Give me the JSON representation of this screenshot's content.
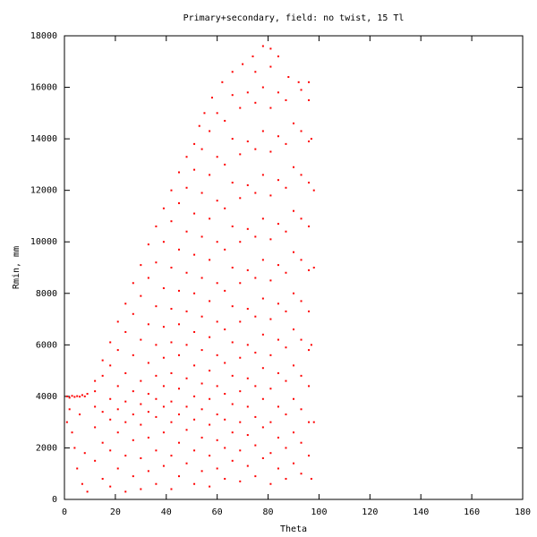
{
  "chart_data": {
    "type": "scatter",
    "title": "Primary+secondary, field: no twist, 15 Tl",
    "x_label": "Theta",
    "y_label": "Rmin, mm",
    "color": "#ff0000",
    "xlim": [
      0,
      180
    ],
    "ylim": [
      0,
      18000
    ],
    "xticks": [
      0,
      20,
      40,
      60,
      80,
      100,
      120,
      140,
      160,
      180
    ],
    "yticks": [
      0,
      2000,
      4000,
      6000,
      8000,
      10000,
      12000,
      14000,
      16000,
      18000
    ],
    "grid": false,
    "x": [
      1,
      2,
      3,
      4,
      5,
      6,
      7,
      8,
      9,
      2,
      3,
      5,
      7,
      9,
      1,
      4,
      6,
      8,
      12,
      15,
      18,
      21,
      24,
      27,
      30,
      33,
      36,
      39,
      42,
      45,
      48,
      51,
      53,
      55,
      58,
      62,
      66,
      70,
      74,
      78,
      81,
      84,
      88,
      92,
      96,
      97,
      98,
      98,
      97,
      98,
      97,
      12,
      12,
      12,
      12,
      15,
      15,
      15,
      15,
      18,
      18,
      18,
      18,
      18,
      21,
      21,
      21,
      21,
      21,
      24,
      24,
      24,
      24,
      24,
      24,
      27,
      27,
      27,
      27,
      27,
      27,
      30,
      30,
      30,
      30,
      30,
      30,
      30,
      33,
      33,
      33,
      33,
      33,
      33,
      33,
      36,
      36,
      36,
      36,
      36,
      36,
      36,
      36,
      39,
      39,
      39,
      39,
      39,
      39,
      39,
      39,
      42,
      42,
      42,
      42,
      42,
      42,
      42,
      42,
      42,
      45,
      45,
      45,
      45,
      45,
      45,
      45,
      45,
      45,
      48,
      48,
      48,
      48,
      48,
      48,
      48,
      48,
      48,
      51,
      51,
      51,
      51,
      51,
      51,
      51,
      51,
      51,
      51,
      54,
      54,
      54,
      54,
      54,
      54,
      54,
      54,
      54,
      54,
      57,
      57,
      57,
      57,
      57,
      57,
      57,
      57,
      57,
      57,
      57,
      60,
      60,
      60,
      60,
      60,
      60,
      60,
      60,
      60,
      60,
      60,
      63,
      63,
      63,
      63,
      63,
      63,
      63,
      63,
      63,
      63,
      63,
      66,
      66,
      66,
      66,
      66,
      66,
      66,
      66,
      66,
      66,
      66,
      69,
      69,
      69,
      69,
      69,
      69,
      69,
      69,
      69,
      69,
      69,
      72,
      72,
      72,
      72,
      72,
      72,
      72,
      72,
      72,
      72,
      72,
      75,
      75,
      75,
      75,
      75,
      75,
      75,
      75,
      75,
      75,
      75,
      75,
      78,
      78,
      78,
      78,
      78,
      78,
      78,
      78,
      78,
      78,
      78,
      81,
      81,
      81,
      81,
      81,
      81,
      81,
      81,
      81,
      81,
      81,
      81,
      84,
      84,
      84,
      84,
      84,
      84,
      84,
      84,
      84,
      84,
      84,
      87,
      87,
      87,
      87,
      87,
      87,
      87,
      87,
      87,
      87,
      87,
      90,
      90,
      90,
      90,
      90,
      90,
      90,
      90,
      90,
      90,
      93,
      93,
      93,
      93,
      93,
      93,
      93,
      93,
      93,
      93,
      93,
      96,
      96,
      96,
      96,
      96,
      96,
      96,
      96,
      96,
      96
    ],
    "values": [
      4000,
      3950,
      4020,
      3980,
      4010,
      3990,
      4050,
      4000,
      4100,
      3500,
      2600,
      1200,
      600,
      300,
      3000,
      2000,
      3300,
      1800,
      4600,
      5400,
      6100,
      6900,
      7600,
      8400,
      9100,
      9900,
      10600,
      11300,
      12000,
      12700,
      13300,
      13800,
      14500,
      15000,
      15600,
      16200,
      16600,
      16900,
      17200,
      17600,
      17500,
      17200,
      16400,
      16200,
      16200,
      14000,
      12000,
      9000,
      6000,
      3000,
      800,
      1500,
      2800,
      3600,
      4200,
      800,
      2200,
      3400,
      4800,
      500,
      1900,
      3100,
      3900,
      5200,
      1200,
      2600,
      3500,
      4400,
      5800,
      300,
      1700,
      3000,
      3800,
      4900,
      6500,
      900,
      2300,
      3300,
      4200,
      5600,
      7200,
      400,
      1600,
      2900,
      3700,
      4600,
      6200,
      7900,
      1100,
      2400,
      3400,
      4100,
      5300,
      6800,
      8600,
      600,
      1900,
      3200,
      3900,
      4800,
      6000,
      7500,
      9200,
      1300,
      2600,
      3600,
      4400,
      5500,
      6700,
      8200,
      10000,
      400,
      1700,
      3000,
      3800,
      4900,
      6100,
      7400,
      9000,
      10800,
      900,
      2200,
      3300,
      4300,
      5600,
      6800,
      8100,
      9700,
      11500,
      1400,
      2700,
      3600,
      4700,
      6000,
      7300,
      8800,
      10400,
      12100,
      600,
      1900,
      3100,
      4000,
      5200,
      6500,
      8000,
      9500,
      11100,
      12800,
      1100,
      2400,
      3500,
      4500,
      5800,
      7100,
      8600,
      10200,
      11900,
      13600,
      500,
      1700,
      2900,
      3900,
      5000,
      6300,
      7700,
      9300,
      10900,
      12600,
      14300,
      1200,
      2300,
      3300,
      4400,
      5600,
      6900,
      8400,
      10000,
      11600,
      13300,
      15000,
      800,
      2000,
      3100,
      4100,
      5300,
      6600,
      8100,
      9700,
      11300,
      13000,
      14700,
      1500,
      2600,
      3700,
      4800,
      6100,
      7500,
      9000,
      10600,
      12300,
      14000,
      15700,
      700,
      1900,
      3000,
      4200,
      5500,
      6900,
      8400,
      10000,
      11700,
      13400,
      15200,
      1300,
      2500,
      3600,
      4700,
      6000,
      7400,
      8900,
      10500,
      12200,
      13900,
      15800,
      900,
      2100,
      3200,
      4400,
      5700,
      7100,
      8600,
      10200,
      11900,
      13600,
      15400,
      16600,
      1600,
      2800,
      3900,
      5100,
      6400,
      7800,
      9300,
      10900,
      12600,
      14300,
      16000,
      600,
      1800,
      3000,
      4300,
      5600,
      7000,
      8500,
      10100,
      11800,
      13500,
      15200,
      16800,
      1200,
      2400,
      3600,
      4900,
      6200,
      7600,
      9100,
      10700,
      12400,
      14100,
      15800,
      800,
      2000,
      3300,
      4600,
      5900,
      7300,
      8800,
      10400,
      12100,
      13800,
      15500,
      1400,
      2600,
      3900,
      5200,
      6600,
      8000,
      9600,
      11200,
      12900,
      14600,
      1000,
      2200,
      3500,
      4800,
      6200,
      7700,
      9300,
      10900,
      12600,
      14300,
      15900,
      1700,
      3000,
      4400,
      5800,
      7300,
      8900,
      10600,
      12300,
      13900,
      15500
    ]
  }
}
